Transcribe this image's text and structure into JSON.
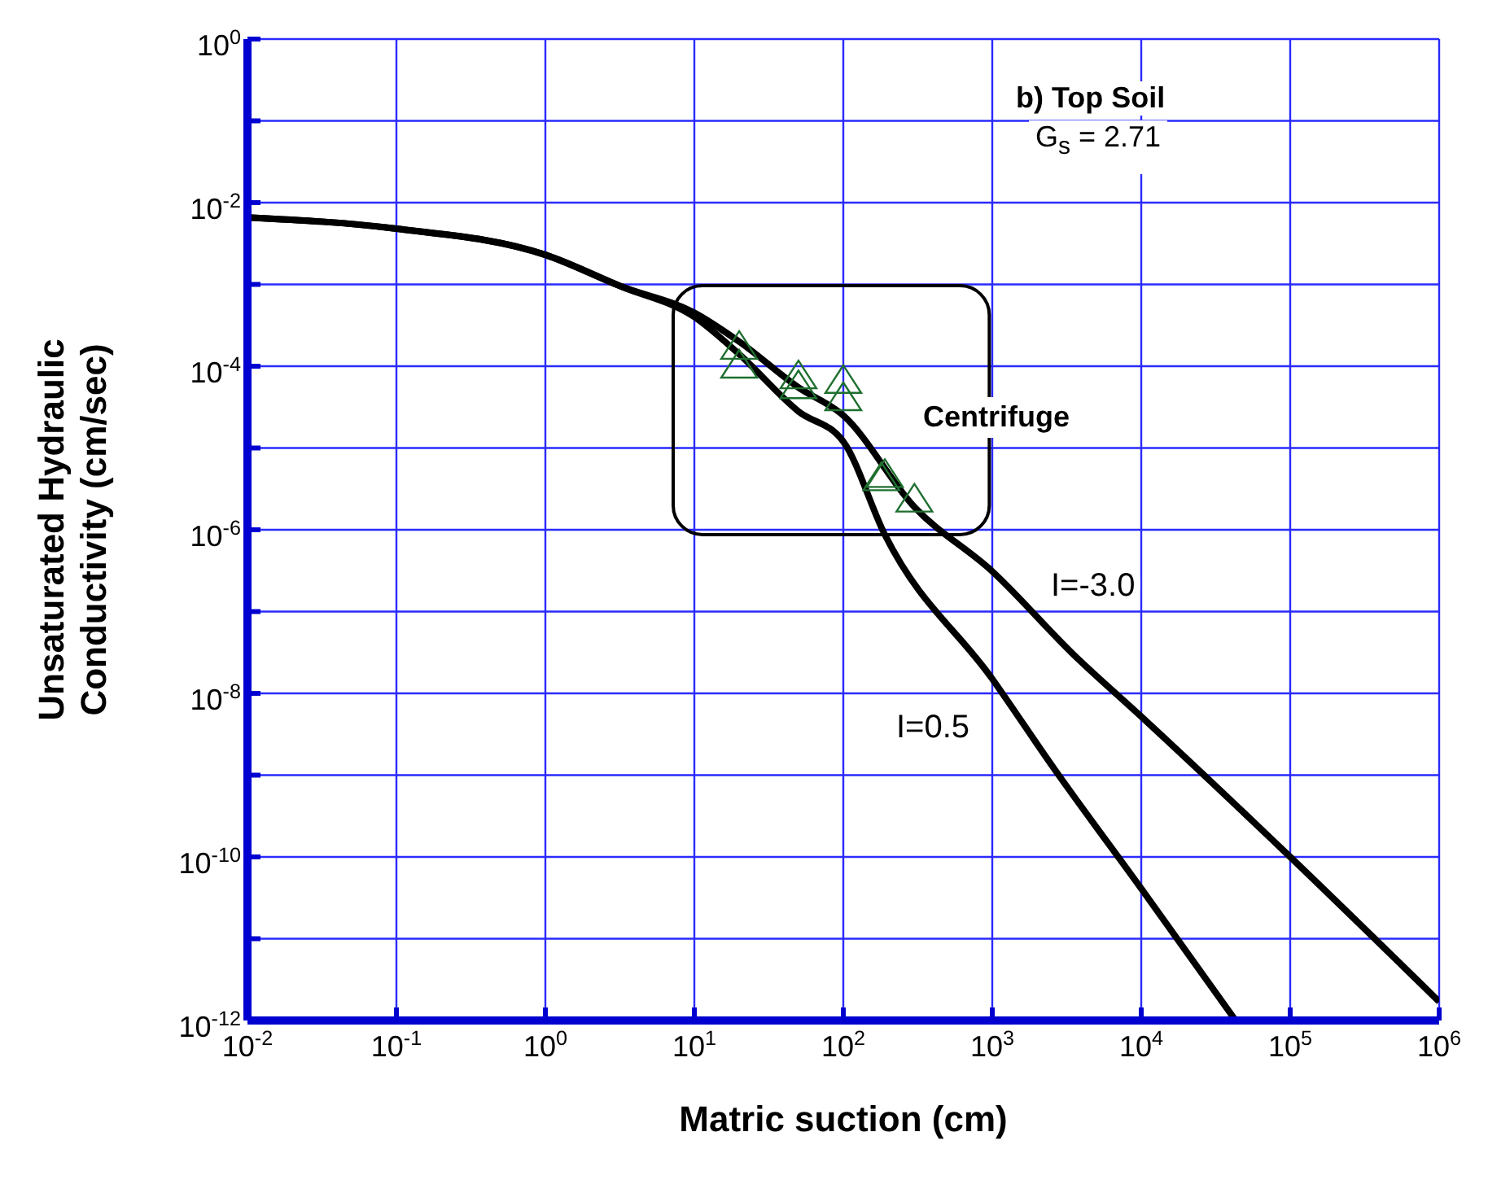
{
  "chart_data": {
    "type": "line",
    "xlabel": "Matric suction (cm)",
    "ylabel": "Unsaturated Hydraulic Conductivity (cm/sec)",
    "log": "xy",
    "grid": true,
    "legend": false,
    "marker": "none",
    "line_style": "solid",
    "xlim": [
      0.01,
      1000000
    ],
    "ylim": [
      1e-12,
      1
    ],
    "xticks": [
      {
        "value": 0.01,
        "label": "10$^{-2}$"
      },
      {
        "value": 0.1,
        "label": "10$^{-1}$"
      },
      {
        "value": 1,
        "label": "10$^{0}$"
      },
      {
        "value": 10,
        "label": "10$^{1}$"
      },
      {
        "value": 100,
        "label": "10$^{2}$"
      },
      {
        "value": 1000,
        "label": "10$^{3}$"
      },
      {
        "value": 10000,
        "label": "10$^{4}$"
      },
      {
        "value": 100000,
        "label": "10$^{5}$"
      },
      {
        "value": 1000000,
        "label": "10$^{6}$"
      }
    ],
    "yticks": [
      {
        "value": 1e-12,
        "label": "10$^{-12}$"
      },
      {
        "value": 1e-11,
        "label": null
      },
      {
        "value": 1e-10,
        "label": "10$^{-10}$"
      },
      {
        "value": 1e-09,
        "label": null
      },
      {
        "value": 1e-08,
        "label": "10$^{-8}$"
      },
      {
        "value": 1e-07,
        "label": null
      },
      {
        "value": 1e-06,
        "label": "10$^{-6}$"
      },
      {
        "value": 1e-05,
        "label": null
      },
      {
        "value": 0.0001,
        "label": "10$^{-4}$"
      },
      {
        "value": 0.001,
        "label": null
      },
      {
        "value": 0.01,
        "label": "10$^{-2}$"
      },
      {
        "value": 0.1,
        "label": null
      },
      {
        "value": 1,
        "label": "10$^{0}$"
      }
    ],
    "series": [
      {
        "name": "I=-3.0",
        "color": "#000000",
        "x": [
          0.01,
          0.1,
          1,
          3.2,
          10,
          20,
          50,
          100,
          300,
          1000,
          3500,
          10000,
          100000,
          1000000
        ],
        "values": [
          0.0066,
          0.0048,
          0.0023,
          0.00095,
          0.00045,
          0.0002,
          5.5e-05,
          2.5e-05,
          1.9e-06,
          3.1e-07,
          3e-08,
          5.2e-09,
          1e-10,
          1.7e-12
        ]
      },
      {
        "name": "I=0.5",
        "color": "#000000",
        "x": [
          0.01,
          0.1,
          1,
          3.2,
          10,
          20,
          50,
          100,
          190,
          1000,
          2600,
          10000,
          43000
        ],
        "values": [
          0.0066,
          0.0048,
          0.0023,
          0.00095,
          0.0004,
          0.00014,
          2.8e-05,
          1.2e-05,
          8.7e-07,
          1.5e-08,
          1.2e-09,
          4.1e-11,
          1e-12
        ]
      },
      {
        "color": "#1f6f2f",
        "type": "scatter",
        "marker": "triangle",
        "x": [
          20,
          20,
          50,
          50,
          100,
          100,
          190,
          180,
          300
        ],
        "values": [
          0.00017,
          0.0001,
          7.4e-05,
          5.6e-05,
          6.5e-05,
          4e-05,
          4.6e-06,
          4.2e-06,
          2.3e-06
        ]
      }
    ],
    "annotations": [
      "b) Top Soil",
      "G$_{s}$ = 2.71",
      "Centrifuge"
    ]
  }
}
